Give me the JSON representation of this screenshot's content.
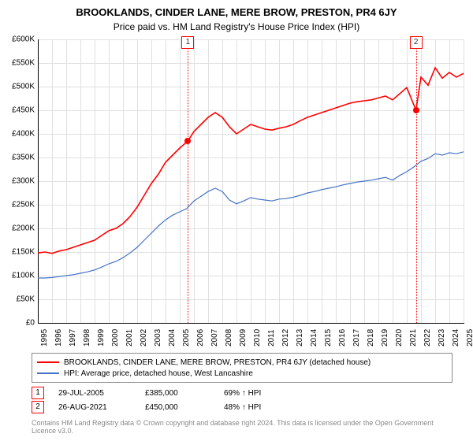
{
  "title": "BROOKLANDS, CINDER LANE, MERE BROW, PRESTON, PR4 6JY",
  "subtitle": "Price paid vs. HM Land Registry's House Price Index (HPI)",
  "chart": {
    "type": "line",
    "background_color": "#ffffff",
    "grid_color": "#e0e0e0",
    "axis_color": "#000000",
    "xlim": [
      1995,
      2025
    ],
    "ylim": [
      0,
      600000
    ],
    "ytick_step": 50000,
    "y_ticks": [
      {
        "v": 0,
        "label": "£0"
      },
      {
        "v": 50000,
        "label": "£50K"
      },
      {
        "v": 100000,
        "label": "£100K"
      },
      {
        "v": 150000,
        "label": "£150K"
      },
      {
        "v": 200000,
        "label": "£200K"
      },
      {
        "v": 250000,
        "label": "£250K"
      },
      {
        "v": 300000,
        "label": "£300K"
      },
      {
        "v": 350000,
        "label": "£350K"
      },
      {
        "v": 400000,
        "label": "£400K"
      },
      {
        "v": 450000,
        "label": "£450K"
      },
      {
        "v": 500000,
        "label": "£500K"
      },
      {
        "v": 550000,
        "label": "£550K"
      },
      {
        "v": 600000,
        "label": "£600K"
      }
    ],
    "x_ticks": [
      1995,
      1996,
      1997,
      1998,
      1999,
      2000,
      2001,
      2002,
      2003,
      2004,
      2005,
      2006,
      2007,
      2008,
      2009,
      2010,
      2011,
      2012,
      2013,
      2014,
      2015,
      2016,
      2017,
      2018,
      2019,
      2020,
      2021,
      2022,
      2023,
      2024,
      2025
    ],
    "series": [
      {
        "name": "BROOKLANDS, CINDER LANE, MERE BROW, PRESTON, PR4 6JY (detached house)",
        "color": "#ff0000",
        "line_width": 1.6,
        "data": [
          [
            1995,
            148000
          ],
          [
            1995.5,
            150000
          ],
          [
            1996,
            147000
          ],
          [
            1996.5,
            152000
          ],
          [
            1997,
            155000
          ],
          [
            1997.5,
            160000
          ],
          [
            1998,
            165000
          ],
          [
            1998.5,
            170000
          ],
          [
            1999,
            175000
          ],
          [
            1999.5,
            185000
          ],
          [
            2000,
            195000
          ],
          [
            2000.5,
            200000
          ],
          [
            2001,
            210000
          ],
          [
            2001.5,
            225000
          ],
          [
            2002,
            245000
          ],
          [
            2002.5,
            270000
          ],
          [
            2003,
            295000
          ],
          [
            2003.5,
            315000
          ],
          [
            2004,
            340000
          ],
          [
            2004.5,
            355000
          ],
          [
            2005,
            370000
          ],
          [
            2005.58,
            385000
          ],
          [
            2006,
            405000
          ],
          [
            2006.5,
            420000
          ],
          [
            2007,
            435000
          ],
          [
            2007.5,
            445000
          ],
          [
            2008,
            435000
          ],
          [
            2008.5,
            415000
          ],
          [
            2009,
            400000
          ],
          [
            2009.5,
            410000
          ],
          [
            2010,
            420000
          ],
          [
            2010.5,
            415000
          ],
          [
            2011,
            410000
          ],
          [
            2011.5,
            408000
          ],
          [
            2012,
            412000
          ],
          [
            2012.5,
            415000
          ],
          [
            2013,
            420000
          ],
          [
            2013.5,
            428000
          ],
          [
            2014,
            435000
          ],
          [
            2014.5,
            440000
          ],
          [
            2015,
            445000
          ],
          [
            2015.5,
            450000
          ],
          [
            2016,
            455000
          ],
          [
            2016.5,
            460000
          ],
          [
            2017,
            465000
          ],
          [
            2017.5,
            468000
          ],
          [
            2018,
            470000
          ],
          [
            2018.5,
            472000
          ],
          [
            2019,
            476000
          ],
          [
            2019.5,
            480000
          ],
          [
            2020,
            472000
          ],
          [
            2020.5,
            485000
          ],
          [
            2021,
            498000
          ],
          [
            2021.65,
            450000
          ],
          [
            2022,
            520000
          ],
          [
            2022.5,
            503000
          ],
          [
            2023,
            540000
          ],
          [
            2023.5,
            518000
          ],
          [
            2024,
            530000
          ],
          [
            2024.5,
            520000
          ],
          [
            2025,
            528000
          ]
        ]
      },
      {
        "name": "HPI: Average price, detached house, West Lancashire",
        "color": "#4472c4",
        "line_width": 1.2,
        "data": [
          [
            1995,
            95000
          ],
          [
            1995.5,
            95000
          ],
          [
            1996,
            96000
          ],
          [
            1996.5,
            98000
          ],
          [
            1997,
            100000
          ],
          [
            1997.5,
            102000
          ],
          [
            1998,
            105000
          ],
          [
            1998.5,
            108000
          ],
          [
            1999,
            112000
          ],
          [
            1999.5,
            118000
          ],
          [
            2000,
            125000
          ],
          [
            2000.5,
            130000
          ],
          [
            2001,
            138000
          ],
          [
            2001.5,
            148000
          ],
          [
            2002,
            160000
          ],
          [
            2002.5,
            175000
          ],
          [
            2003,
            190000
          ],
          [
            2003.5,
            205000
          ],
          [
            2004,
            218000
          ],
          [
            2004.5,
            228000
          ],
          [
            2005,
            235000
          ],
          [
            2005.5,
            242000
          ],
          [
            2006,
            258000
          ],
          [
            2006.5,
            268000
          ],
          [
            2007,
            278000
          ],
          [
            2007.5,
            285000
          ],
          [
            2008,
            278000
          ],
          [
            2008.5,
            260000
          ],
          [
            2009,
            252000
          ],
          [
            2009.5,
            258000
          ],
          [
            2010,
            265000
          ],
          [
            2010.5,
            262000
          ],
          [
            2011,
            260000
          ],
          [
            2011.5,
            258000
          ],
          [
            2012,
            262000
          ],
          [
            2012.5,
            263000
          ],
          [
            2013,
            266000
          ],
          [
            2013.5,
            270000
          ],
          [
            2014,
            275000
          ],
          [
            2014.5,
            278000
          ],
          [
            2015,
            282000
          ],
          [
            2015.5,
            285000
          ],
          [
            2016,
            288000
          ],
          [
            2016.5,
            292000
          ],
          [
            2017,
            295000
          ],
          [
            2017.5,
            298000
          ],
          [
            2018,
            300000
          ],
          [
            2018.5,
            302000
          ],
          [
            2019,
            305000
          ],
          [
            2019.5,
            308000
          ],
          [
            2020,
            302000
          ],
          [
            2020.5,
            312000
          ],
          [
            2021,
            320000
          ],
          [
            2021.5,
            330000
          ],
          [
            2022,
            342000
          ],
          [
            2022.5,
            348000
          ],
          [
            2023,
            358000
          ],
          [
            2023.5,
            355000
          ],
          [
            2024,
            360000
          ],
          [
            2024.5,
            358000
          ],
          [
            2025,
            362000
          ]
        ]
      }
    ],
    "markers": [
      {
        "n": "1",
        "x": 2005.58,
        "y": 385000,
        "dot_color": "#ff0000"
      },
      {
        "n": "2",
        "x": 2021.65,
        "y": 450000,
        "dot_color": "#ff0000"
      }
    ]
  },
  "legend": {
    "items": [
      {
        "color": "#ff0000",
        "label": "BROOKLANDS, CINDER LANE, MERE BROW, PRESTON, PR4 6JY (detached house)"
      },
      {
        "color": "#4472c4",
        "label": "HPI: Average price, detached house, West Lancashire"
      }
    ]
  },
  "sales": [
    {
      "n": "1",
      "date": "29-JUL-2005",
      "price": "£385,000",
      "delta": "69% ↑ HPI"
    },
    {
      "n": "2",
      "date": "26-AUG-2021",
      "price": "£450,000",
      "delta": "48% ↑ HPI"
    }
  ],
  "footnote": "Contains HM Land Registry data © Crown copyright and database right 2024. This data is licensed under the Open Government Licence v3.0."
}
